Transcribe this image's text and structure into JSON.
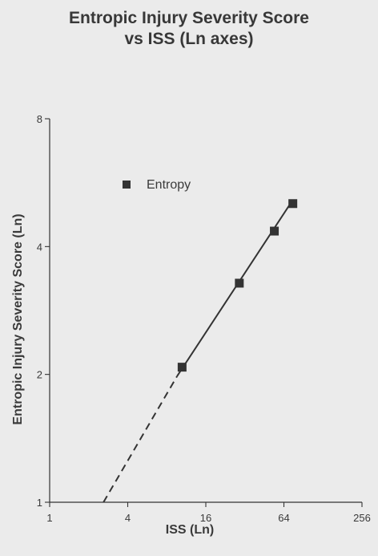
{
  "chart_data": {
    "type": "scatter",
    "title": [
      "Entropic Injury Severity Score",
      "vs ISS (Ln axes)"
    ],
    "xlabel": "ISS (Ln)",
    "ylabel": "Entropic Injury Severity Score (Ln)",
    "x_scale": "log",
    "y_scale": "log",
    "xlim": [
      1,
      256
    ],
    "ylim": [
      1,
      8
    ],
    "x_ticks": [
      1,
      4,
      16,
      64,
      256
    ],
    "y_ticks": [
      1,
      2,
      4,
      8
    ],
    "x_tick_labels": [
      "1",
      "4",
      "16",
      "64",
      "256"
    ],
    "y_tick_labels": [
      "1",
      "2",
      "4",
      "8"
    ],
    "legend_position": "top-left",
    "series": [
      {
        "name": "Entropy",
        "marker": "square",
        "color": "#333333",
        "x": [
          10.5,
          29,
          54,
          75
        ],
        "y": [
          2.08,
          3.28,
          4.35,
          5.05
        ]
      }
    ],
    "fit_line": {
      "solid": {
        "x": [
          9.6,
          74
        ],
        "y": [
          1.98,
          5.12
        ]
      },
      "dashed": {
        "x": [
          2.6,
          9.6
        ],
        "y": [
          1.0,
          1.98
        ]
      }
    },
    "grid": false
  }
}
